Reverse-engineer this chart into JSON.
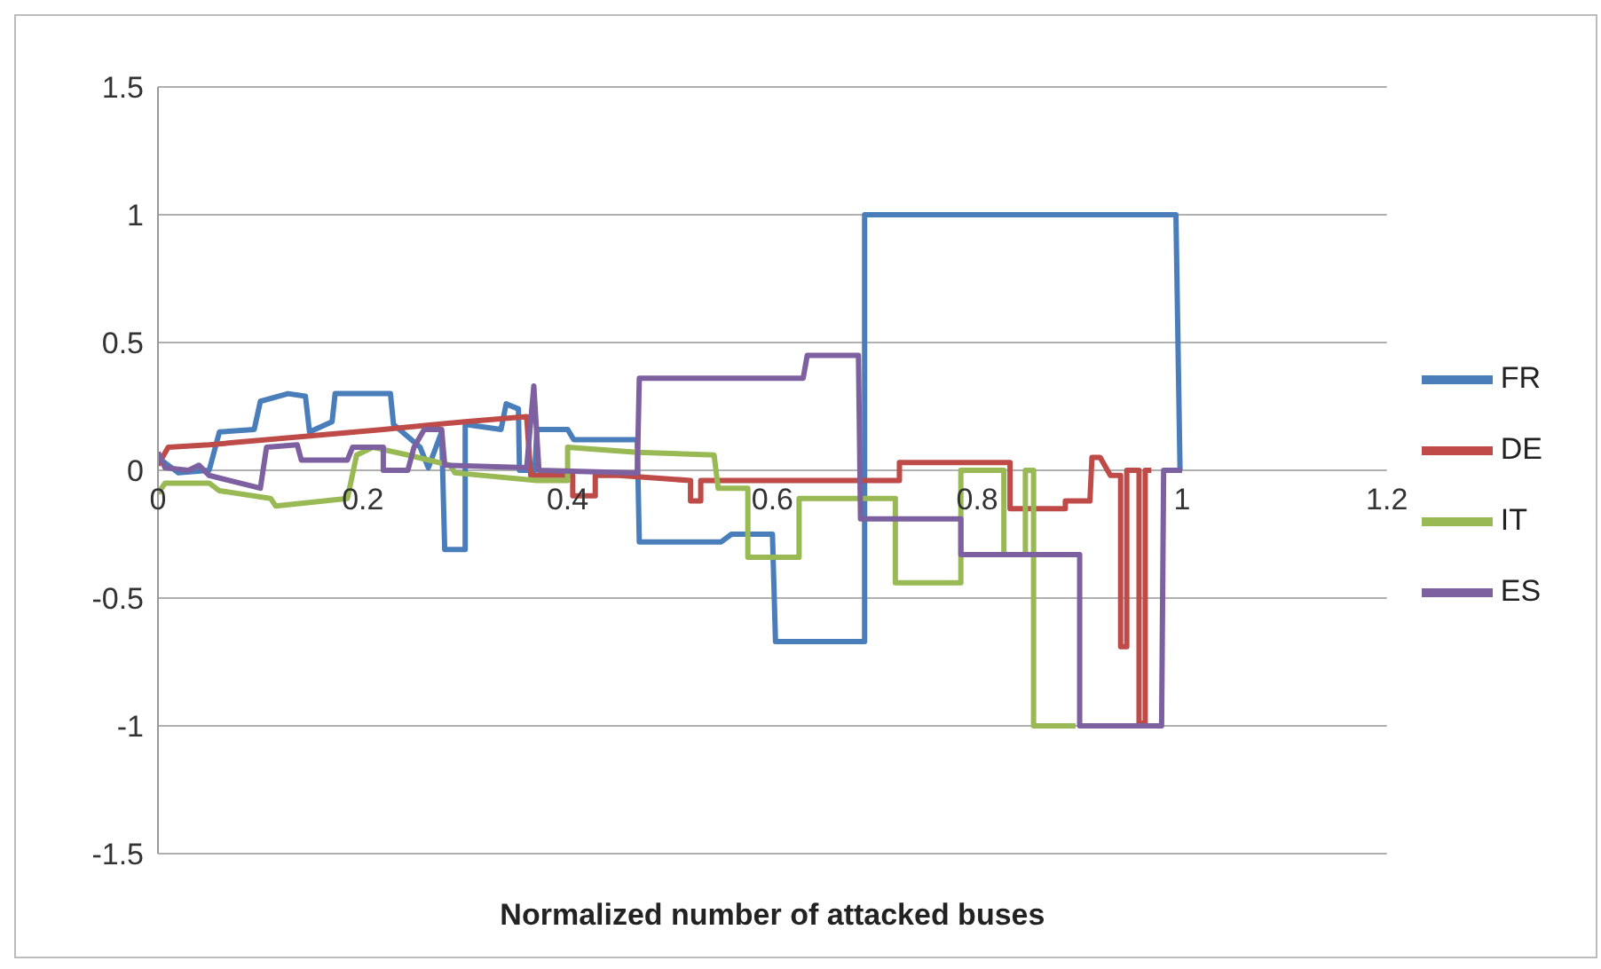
{
  "chart_data": {
    "type": "line",
    "xlabel": "Normalized number of attacked buses",
    "xlim": [
      0,
      1.2
    ],
    "xticks": [
      0,
      0.2,
      0.4,
      0.6,
      0.8,
      1,
      1.2
    ],
    "ylim": [
      -1.5,
      1.5
    ],
    "yticks": [
      -1.5,
      -1,
      -0.5,
      0,
      0.5,
      1,
      1.5
    ],
    "grid": "y",
    "legend": "right",
    "marker": "none",
    "line_style": "solid",
    "series": [
      {
        "name": "FR",
        "color": "#4a7ebb",
        "x": [
          0,
          0.02,
          0.05,
          0.06,
          0.094,
          0.1,
          0.127,
          0.144,
          0.148,
          0.17,
          0.173,
          0.227,
          0.23,
          0.256,
          0.264,
          0.277,
          0.28,
          0.3,
          0.3,
          0.335,
          0.34,
          0.352,
          0.353,
          0.368,
          0.37,
          0.4,
          0.406,
          0.468,
          0.47,
          0.55,
          0.56,
          0.6,
          0.603,
          0.69,
          0.69,
          0.994,
          0.998,
          1
        ],
        "values": [
          0.05,
          -0.01,
          0,
          0.15,
          0.16,
          0.27,
          0.3,
          0.29,
          0.15,
          0.19,
          0.3,
          0.3,
          0.18,
          0.09,
          0.01,
          0.15,
          -0.31,
          -0.31,
          0.18,
          0.16,
          0.26,
          0.24,
          0,
          0,
          0.16,
          0.16,
          0.12,
          0.12,
          -0.28,
          -0.28,
          -0.25,
          -0.25,
          -0.67,
          -0.67,
          1,
          1,
          0,
          0
        ]
      },
      {
        "name": "DE",
        "color": "#be4b48",
        "x": [
          0,
          0.01,
          0.05,
          0.136,
          0.22,
          0.3,
          0.36,
          0.364,
          0.405,
          0.405,
          0.427,
          0.427,
          0.45,
          0.52,
          0.52,
          0.53,
          0.53,
          0.724,
          0.724,
          0.832,
          0.832,
          0.886,
          0.886,
          0.91,
          0.912,
          0.92,
          0.93,
          0.94,
          0.94,
          0.946,
          0.946,
          0.958,
          0.958,
          0.964,
          0.964,
          0.97
        ],
        "values": [
          0.02,
          0.09,
          0.1,
          0.13,
          0.16,
          0.19,
          0.21,
          -0.02,
          -0.02,
          -0.1,
          -0.1,
          -0.02,
          -0.02,
          -0.04,
          -0.12,
          -0.12,
          -0.04,
          -0.04,
          0.03,
          0.03,
          -0.15,
          -0.15,
          -0.12,
          -0.12,
          0.05,
          0.05,
          -0.02,
          -0.02,
          -0.69,
          -0.69,
          0,
          0,
          -0.99,
          -0.99,
          0,
          0
        ]
      },
      {
        "name": "IT",
        "color": "#98b954",
        "x": [
          0,
          0.007,
          0.05,
          0.06,
          0.11,
          0.115,
          0.185,
          0.194,
          0.21,
          0.244,
          0.285,
          0.29,
          0.37,
          0.4,
          0.4,
          0.468,
          0.543,
          0.547,
          0.576,
          0.576,
          0.626,
          0.626,
          0.72,
          0.72,
          0.784,
          0.784,
          0.826,
          0.826,
          0.847,
          0.847,
          0.855,
          0.855,
          0.896
        ],
        "values": [
          -0.09,
          -0.05,
          -0.05,
          -0.08,
          -0.11,
          -0.14,
          -0.11,
          0.06,
          0.09,
          0.06,
          0.02,
          -0.01,
          -0.04,
          -0.04,
          0.09,
          0.07,
          0.06,
          -0.07,
          -0.07,
          -0.34,
          -0.34,
          -0.11,
          -0.11,
          -0.44,
          -0.44,
          0,
          0,
          -0.33,
          -0.33,
          0,
          0,
          -1,
          -1
        ]
      },
      {
        "name": "ES",
        "color": "#7d60a0",
        "x": [
          0,
          0.007,
          0.03,
          0.04,
          0.05,
          0.1,
          0.106,
          0.136,
          0.14,
          0.185,
          0.19,
          0.22,
          0.22,
          0.244,
          0.25,
          0.26,
          0.277,
          0.28,
          0.36,
          0.367,
          0.372,
          0.468,
          0.47,
          0.63,
          0.634,
          0.684,
          0.686,
          0.784,
          0.784,
          0.9,
          0.9,
          0.98,
          0.982,
          1
        ],
        "values": [
          0.07,
          0.01,
          0,
          0.02,
          -0.02,
          -0.07,
          0.09,
          0.1,
          0.04,
          0.04,
          0.09,
          0.09,
          0,
          0,
          0.09,
          0.16,
          0.16,
          0.02,
          0.01,
          0.33,
          0,
          -0.01,
          0.36,
          0.36,
          0.45,
          0.45,
          -0.19,
          -0.19,
          -0.33,
          -0.33,
          -1,
          -1,
          0,
          0
        ]
      }
    ]
  }
}
